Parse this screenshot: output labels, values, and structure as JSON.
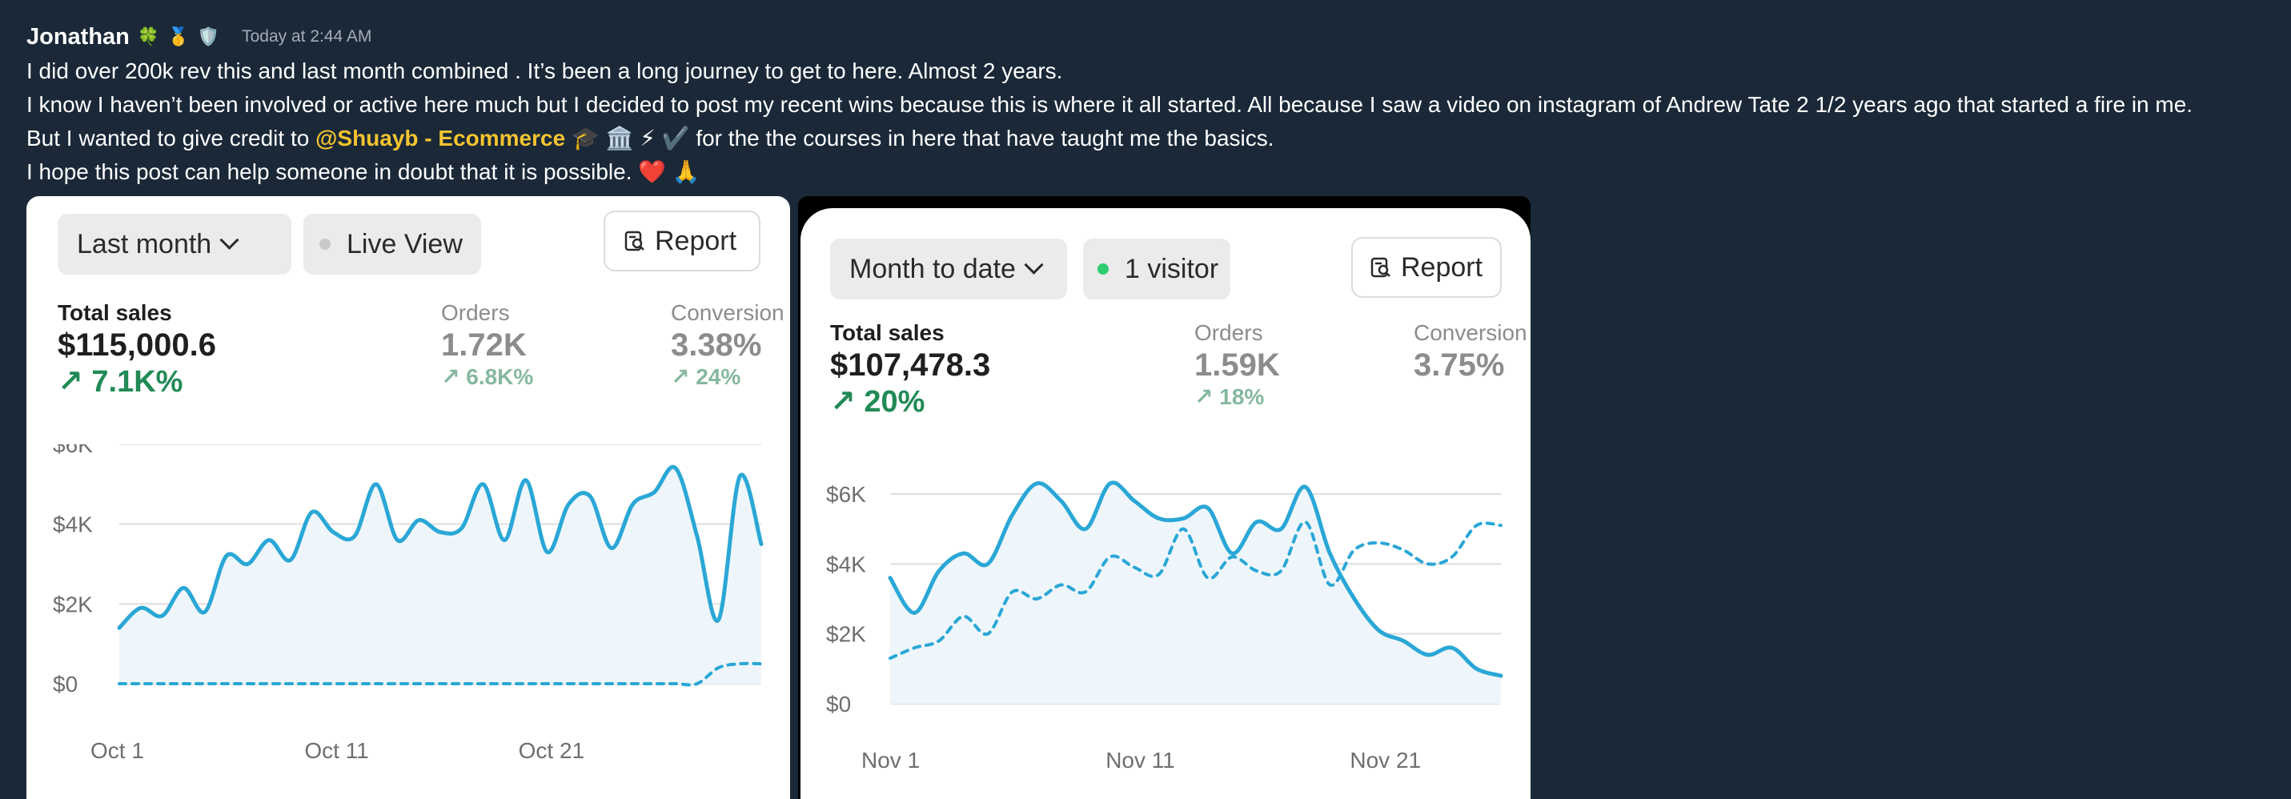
{
  "message": {
    "author": "Jonathan",
    "badges": [
      "🍀",
      "🥇",
      "🛡️"
    ],
    "timestamp": "Today at 2:44 AM",
    "line1": "I did over 200k rev this and last month combined . It’s been a long journey to get to here. Almost 2 years.",
    "line2": "I know I haven’t been involved or active here much but I decided to post my recent wins because this is where it all started. All because I saw a video on instagram of Andrew Tate 2 1/2 years ago that started a fire in me.",
    "line3_prefix": "But I wanted to give credit to",
    "mention": "@Shuayb - Ecommerce",
    "mention_badges": "🎓 🏛️ ⚡ ✔️",
    "line3_suffix": "for the the courses in here that have taught me the basics.",
    "line4": "I hope this post can help someone in doubt that it is possible.",
    "line4_emoji": "❤️ 🙏"
  },
  "card1": {
    "range_label": "Last month",
    "live_label": "Live View",
    "report_label": "Report",
    "total_sales_label": "Total sales",
    "total_sales_value": "$115,000.6",
    "total_sales_change": "↗ 7.1K%",
    "orders_label": "Orders",
    "orders_value": "1.72K",
    "orders_change": "↗ 6.8K%",
    "conversion_label": "Conversion",
    "conversion_value": "3.38%",
    "conversion_change": "↗ 24%"
  },
  "card2": {
    "range_label": "Month to date",
    "visitor_label": "1 visitor",
    "report_label": "Report",
    "total_sales_label": "Total sales",
    "total_sales_value": "$107,478.3",
    "total_sales_change": "↗ 20%",
    "orders_label": "Orders",
    "orders_value": "1.59K",
    "orders_change": "↗ 18%",
    "conversion_label": "Conversion",
    "conversion_value": "3.75%"
  },
  "colors": {
    "background": "#1a2838",
    "mention": "#f4c430",
    "line": "#2aa7d6",
    "positive": "#218a55",
    "live_dot": "#c9c9c9",
    "visitor_dot": "#2ecc71"
  },
  "chart_data": [
    {
      "type": "line",
      "title": "",
      "y_ticks": [
        "$6K",
        "$4K",
        "$2K",
        "$0"
      ],
      "x_ticks": [
        "Oct 1",
        "Oct 11",
        "Oct 21"
      ],
      "ylim": [
        0,
        6000
      ],
      "grid": true,
      "series": [
        {
          "style": "solid",
          "x": [
            1,
            2,
            3,
            4,
            5,
            6,
            7,
            8,
            9,
            10,
            11,
            12,
            13,
            14,
            15,
            16,
            17,
            18,
            19,
            20,
            21,
            22,
            23,
            24,
            25,
            26,
            27,
            28,
            29,
            30,
            31
          ],
          "values": [
            1400,
            1900,
            1700,
            2400,
            1800,
            3200,
            3000,
            3600,
            3100,
            4300,
            3800,
            3700,
            5000,
            3600,
            4100,
            3800,
            3900,
            5000,
            3600,
            5100,
            3300,
            4500,
            4700,
            3400,
            4500,
            4800,
            5400,
            3700,
            1600,
            5200,
            3500
          ]
        },
        {
          "style": "dashed",
          "x": [
            1,
            2,
            3,
            4,
            5,
            6,
            7,
            8,
            9,
            10,
            11,
            12,
            13,
            14,
            15,
            16,
            17,
            18,
            19,
            20,
            21,
            22,
            23,
            24,
            25,
            26,
            27,
            28,
            29,
            30,
            31
          ],
          "values": [
            0,
            0,
            0,
            0,
            0,
            0,
            0,
            0,
            0,
            0,
            0,
            0,
            0,
            0,
            0,
            0,
            0,
            0,
            0,
            0,
            0,
            0,
            0,
            0,
            0,
            0,
            0,
            0,
            400,
            500,
            500
          ]
        }
      ]
    },
    {
      "type": "line",
      "title": "",
      "y_ticks": [
        "$6K",
        "$4K",
        "$2K",
        "$0"
      ],
      "x_ticks": [
        "Nov 1",
        "Nov 11",
        "Nov 21"
      ],
      "ylim": [
        0,
        6000
      ],
      "grid": true,
      "series": [
        {
          "style": "solid",
          "x": [
            1,
            2,
            3,
            4,
            5,
            6,
            7,
            8,
            9,
            10,
            11,
            12,
            13,
            14,
            15,
            16,
            17,
            18,
            19,
            20,
            21,
            22,
            23,
            24,
            25,
            26
          ],
          "values": [
            3600,
            2600,
            3800,
            4300,
            4000,
            5400,
            6300,
            5800,
            5000,
            6300,
            5800,
            5300,
            5300,
            5600,
            4300,
            5200,
            5000,
            6200,
            4300,
            3000,
            2100,
            1800,
            1400,
            1600,
            1000,
            800
          ]
        },
        {
          "style": "dashed",
          "x": [
            1,
            2,
            3,
            4,
            5,
            6,
            7,
            8,
            9,
            10,
            11,
            12,
            13,
            14,
            15,
            16,
            17,
            18,
            19,
            20,
            21,
            22,
            23,
            24,
            25,
            26
          ],
          "values": [
            1300,
            1600,
            1800,
            2500,
            2000,
            3200,
            3000,
            3400,
            3200,
            4200,
            3900,
            3700,
            5000,
            3600,
            4200,
            3800,
            3800,
            5200,
            3400,
            4400,
            4600,
            4400,
            4000,
            4200,
            5100,
            5100
          ]
        }
      ]
    }
  ]
}
